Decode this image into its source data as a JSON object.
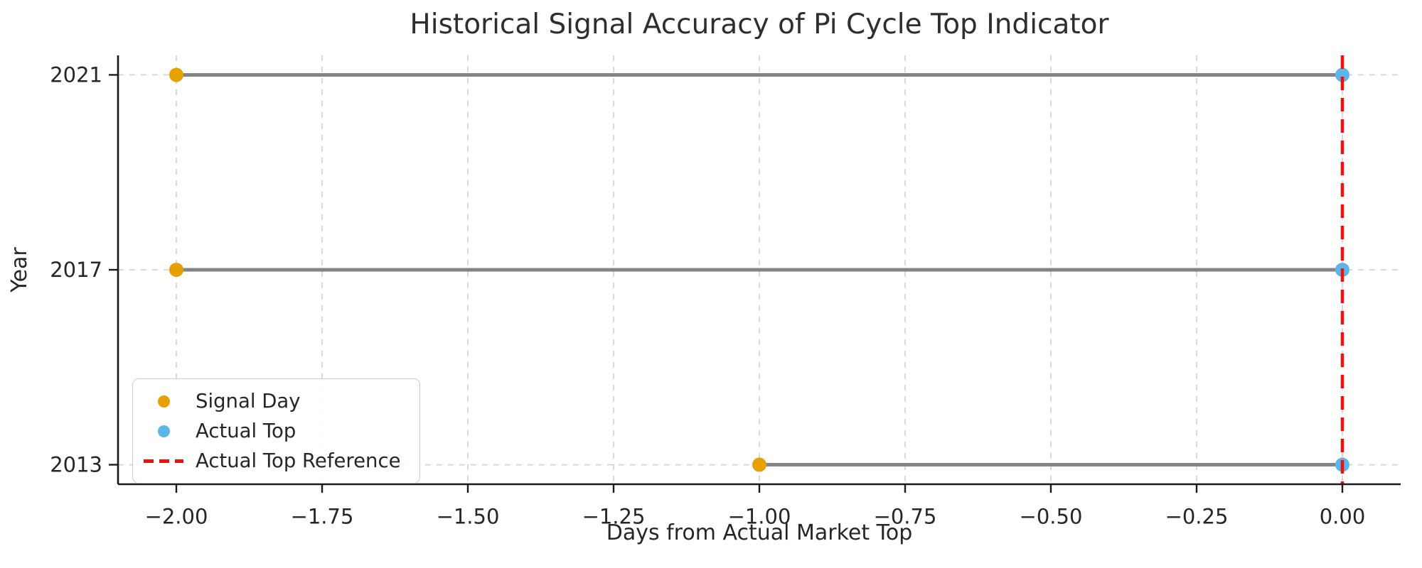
{
  "chart_data": {
    "type": "scatter",
    "subtype": "dumbbell-timeline",
    "title": "Historical Signal Accuracy of Pi Cycle Top Indicator",
    "xlabel": "Days from Actual Market Top",
    "ylabel": "Year",
    "years": [
      "2013",
      "2017",
      "2021"
    ],
    "series": [
      {
        "name": "Signal Day",
        "color": "#E8A000",
        "values": [
          -1,
          -2,
          -2
        ]
      },
      {
        "name": "Actual Top",
        "color": "#5CB7E8",
        "values": [
          0,
          0,
          0
        ]
      }
    ],
    "connector_color": "#848484",
    "reference_line": {
      "label": "Actual Top Reference",
      "x": 0,
      "color": "#EE1111",
      "style": "dashed"
    },
    "x_ticks": {
      "values": [
        -2.0,
        -1.75,
        -1.5,
        -1.25,
        -1.0,
        -0.75,
        -0.5,
        -0.25,
        0.0
      ],
      "labels": [
        "−2.00",
        "−1.75",
        "−1.50",
        "−1.25",
        "−1.00",
        "−0.75",
        "−0.50",
        "−0.25",
        "0.00"
      ]
    },
    "xlim": [
      -2.1,
      0.1
    ],
    "ylim": [
      -0.1,
      2.1
    ],
    "grid": true,
    "legend": {
      "position": "lower left",
      "items": [
        {
          "label": "Signal Day",
          "marker": "dot",
          "color": "#E8A000"
        },
        {
          "label": "Actual Top",
          "marker": "dot",
          "color": "#5CB7E8"
        },
        {
          "label": "Actual Top Reference",
          "marker": "dashed-line",
          "color": "#EE1111"
        }
      ]
    }
  }
}
